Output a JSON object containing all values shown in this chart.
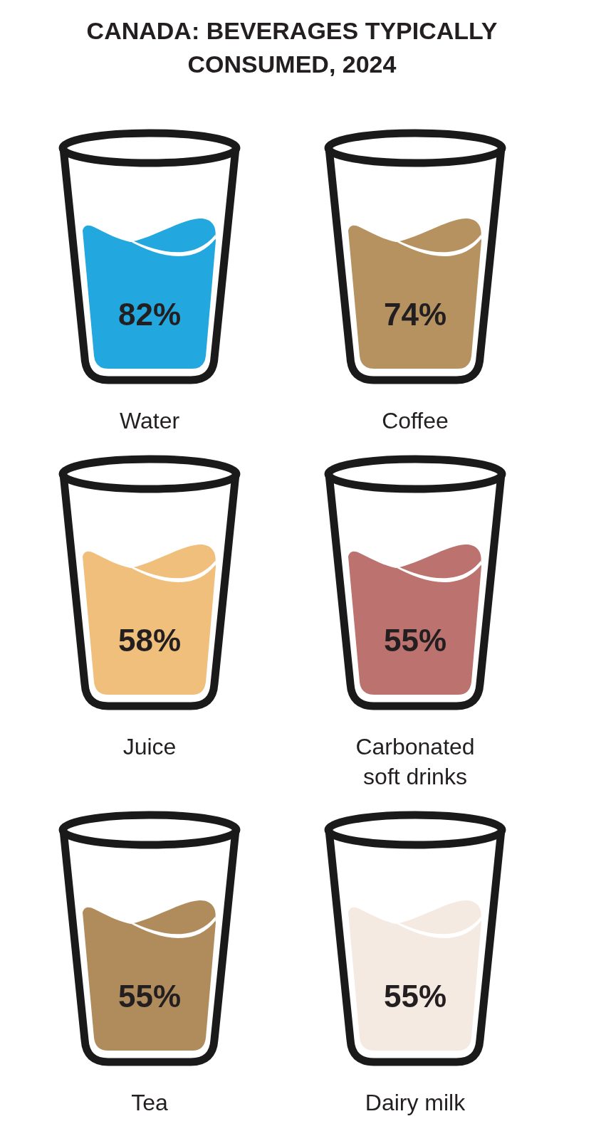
{
  "chart_data": {
    "type": "other",
    "title": "CANADA: BEVERAGES TYPICALLY CONSUMED, 2024",
    "categories": [
      "Water",
      "Coffee",
      "Juice",
      "Carbonated soft drinks",
      "Tea",
      "Dairy milk"
    ],
    "values": [
      82,
      74,
      58,
      55,
      55,
      55
    ],
    "value_labels": [
      "82%",
      "74%",
      "58%",
      "55%",
      "55%",
      "55%"
    ],
    "colors": [
      "#22a7df",
      "#b5925f",
      "#f0bf7b",
      "#bc726e",
      "#b08c5d",
      "#f5eae2"
    ]
  }
}
